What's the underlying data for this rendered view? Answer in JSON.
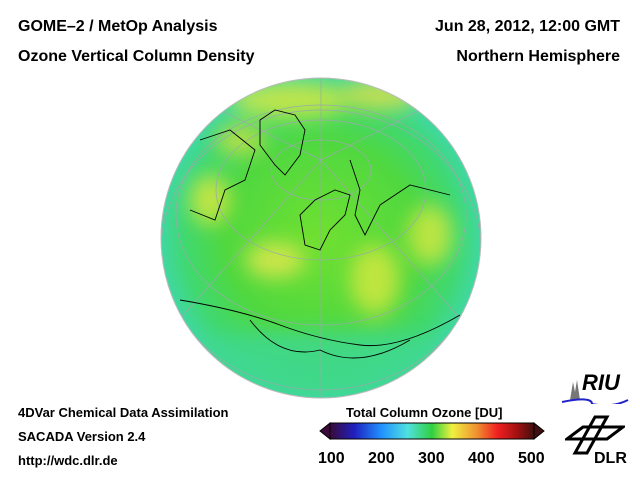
{
  "header": {
    "title_left_1": "GOME–2 / MetOp Analysis",
    "title_left_2": "Ozone Vertical Column Density",
    "title_right_1": "Jun 28, 2012, 12:00 GMT",
    "title_right_2": "Northern Hemisphere"
  },
  "footer": {
    "line1": "4DVar Chemical Data Assimilation",
    "line2": "SACADA Version 2.4",
    "line3": "http://wdc.dlr.de"
  },
  "colorbar": {
    "title": "Total Column Ozone [DU]",
    "ticks": [
      "100",
      "200",
      "300",
      "400",
      "500"
    ],
    "colors": [
      "#3a0a3a",
      "#2020c0",
      "#2090ff",
      "#50e0e0",
      "#30d040",
      "#f0f040",
      "#f09030",
      "#f02020",
      "#a01010",
      "#401010"
    ]
  },
  "logos": {
    "riu": "RIU",
    "dlr": "DLR"
  }
}
